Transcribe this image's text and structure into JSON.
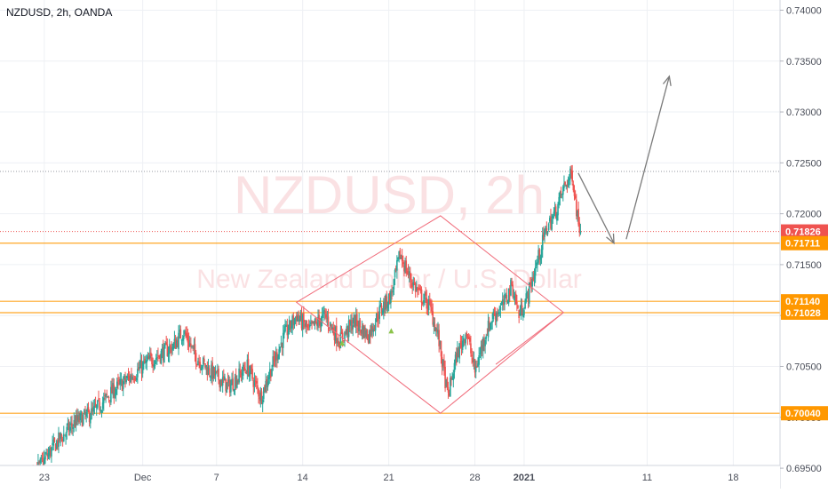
{
  "header": {
    "title": "NZDUSD, 2h, OANDA"
  },
  "watermark": {
    "symbol": "NZDUSD, 2h",
    "description": "New Zealand Dollar / U.S. Dollar"
  },
  "colors": {
    "up": "#26a69a",
    "down": "#ef5350",
    "level": "#ff9800",
    "level_label_bg": "#ff9800",
    "current_price_bg": "#ef5350",
    "pattern": "#f06b7a",
    "arrow": "#7a7a7a",
    "grid": "#eef0f4",
    "axis_text": "#4a4e59"
  },
  "chart_data": {
    "type": "candlestick",
    "symbol": "NZDUSD",
    "timeframe": "2h",
    "broker": "OANDA",
    "y_axis": {
      "ticks": [
        "0.74000",
        "0.73500",
        "0.73000",
        "0.72500",
        "0.72000",
        "0.71500",
        "0.71000",
        "0.70500",
        "0.70000",
        "0.69500"
      ],
      "tick_values": [
        0.74,
        0.735,
        0.73,
        0.725,
        0.72,
        0.715,
        0.71,
        0.705,
        0.7,
        0.695
      ],
      "ylim": [
        0.693,
        0.741
      ]
    },
    "x_axis": {
      "ticks": [
        "23",
        "Dec",
        "7",
        "14",
        "21",
        "28",
        "2021",
        "11",
        "18"
      ],
      "tick_days": [
        0,
        8,
        14,
        21,
        28,
        35,
        39,
        49,
        56
      ],
      "xlim_days": [
        -3.6,
        59.8
      ],
      "date_origin": "Nov 23"
    },
    "current_price": {
      "value": 0.71826,
      "label": "0.71826"
    },
    "horizontal_levels": [
      {
        "value": 0.71711,
        "label": "0.71711"
      },
      {
        "value": 0.7114,
        "label": "0.71140"
      },
      {
        "value": 0.71028,
        "label": "0.71028"
      },
      {
        "value": 0.7004,
        "label": "0.70040"
      }
    ],
    "dotted_lines": [
      0.72416,
      0.71826
    ],
    "anchors": [
      {
        "day": -3.5,
        "price": 0.693
      },
      {
        "day": -1.8,
        "price": 0.6935
      },
      {
        "day": -0.5,
        "price": 0.695
      },
      {
        "day": 1.0,
        "price": 0.6975
      },
      {
        "day": 2.5,
        "price": 0.6995
      },
      {
        "day": 4.0,
        "price": 0.7005
      },
      {
        "day": 5.5,
        "price": 0.7025
      },
      {
        "day": 7.0,
        "price": 0.704
      },
      {
        "day": 8.5,
        "price": 0.7055
      },
      {
        "day": 10.5,
        "price": 0.707
      },
      {
        "day": 11.3,
        "price": 0.7085
      },
      {
        "day": 12.3,
        "price": 0.706
      },
      {
        "day": 13.5,
        "price": 0.7045
      },
      {
        "day": 15.0,
        "price": 0.703
      },
      {
        "day": 16.5,
        "price": 0.705
      },
      {
        "day": 17.6,
        "price": 0.702
      },
      {
        "day": 18.5,
        "price": 0.705
      },
      {
        "day": 19.5,
        "price": 0.708
      },
      {
        "day": 20.5,
        "price": 0.71
      },
      {
        "day": 21.5,
        "price": 0.7085
      },
      {
        "day": 22.8,
        "price": 0.71
      },
      {
        "day": 24.0,
        "price": 0.7075
      },
      {
        "day": 25.2,
        "price": 0.7095
      },
      {
        "day": 26.3,
        "price": 0.708
      },
      {
        "day": 27.3,
        "price": 0.7105
      },
      {
        "day": 28.2,
        "price": 0.712
      },
      {
        "day": 28.9,
        "price": 0.716
      },
      {
        "day": 29.6,
        "price": 0.714
      },
      {
        "day": 30.5,
        "price": 0.712
      },
      {
        "day": 31.3,
        "price": 0.711
      },
      {
        "day": 32.0,
        "price": 0.708
      },
      {
        "day": 32.8,
        "price": 0.702
      },
      {
        "day": 33.5,
        "price": 0.706
      },
      {
        "day": 34.3,
        "price": 0.7085
      },
      {
        "day": 35.0,
        "price": 0.7045
      },
      {
        "day": 35.8,
        "price": 0.708
      },
      {
        "day": 36.5,
        "price": 0.71
      },
      {
        "day": 37.3,
        "price": 0.711
      },
      {
        "day": 38.0,
        "price": 0.713
      },
      {
        "day": 38.6,
        "price": 0.71
      },
      {
        "day": 39.3,
        "price": 0.712
      },
      {
        "day": 40.0,
        "price": 0.715
      },
      {
        "day": 40.8,
        "price": 0.7185
      },
      {
        "day": 41.5,
        "price": 0.72
      },
      {
        "day": 42.2,
        "price": 0.7225
      },
      {
        "day": 42.9,
        "price": 0.724
      },
      {
        "day": 43.3,
        "price": 0.72
      },
      {
        "day": 43.6,
        "price": 0.7183
      }
    ],
    "diamond_pattern": [
      {
        "day": 20.5,
        "price": 0.7113
      },
      {
        "day": 32.2,
        "price": 0.7198
      },
      {
        "day": 42.2,
        "price": 0.7103
      },
      {
        "day": 32.2,
        "price": 0.7004
      }
    ],
    "diamond_tail": [
      {
        "day": 36.7,
        "price": 0.7052
      },
      {
        "day": 42.2,
        "price": 0.7103
      }
    ],
    "projection_arrow": [
      {
        "day": 43.4,
        "price": 0.724
      },
      {
        "day": 46.3,
        "price": 0.7171
      },
      {
        "day": 47.3,
        "price": 0.7175
      },
      {
        "day": 50.8,
        "price": 0.7335
      }
    ],
    "markers": [
      {
        "day": 24.2,
        "price": 0.7073
      },
      {
        "day": 28.2,
        "price": 0.7085
      }
    ],
    "title": "NZDUSD, 2h, OANDA"
  }
}
